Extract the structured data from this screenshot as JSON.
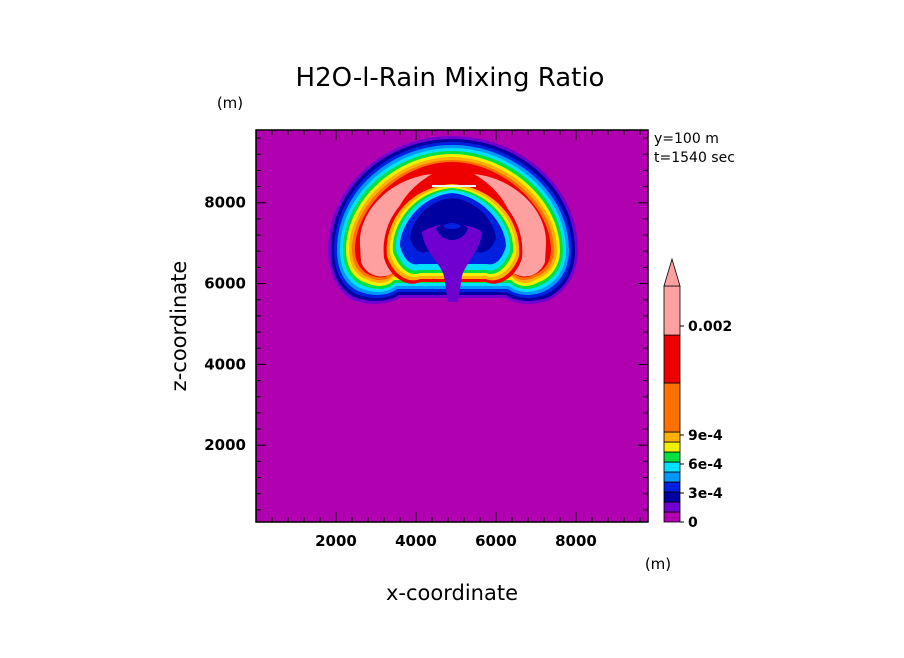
{
  "chart_data": {
    "type": "heatmap",
    "title": "H2O-l-Rain Mixing Ratio",
    "xlabel": "x-coordinate",
    "ylabel": "z-coordinate",
    "x_unit": "(m)",
    "y_unit": "(m)",
    "xlim": [
      0,
      9800
    ],
    "ylim": [
      100,
      9800
    ],
    "x_ticks": [
      "2000",
      "4000",
      "6000",
      "8000"
    ],
    "y_ticks": [
      "2000",
      "4000",
      "6000",
      "8000"
    ],
    "annotations": [
      "y=100 m",
      "t=1540 sec"
    ],
    "colorbar": {
      "labels": [
        {
          "text": "0.002",
          "level": 0.002
        },
        {
          "text": "9e-4",
          "level": 0.0009
        },
        {
          "text": "6e-4",
          "level": 0.0006
        },
        {
          "text": "3e-4",
          "level": 0.0003
        },
        {
          "text": "0",
          "level": 0
        }
      ],
      "colors": [
        "#b000b0",
        "#7000d0",
        "#0000a0",
        "#0020e0",
        "#0098ff",
        "#00e0ff",
        "#00e040",
        "#f0f000",
        "#ffb000",
        "#ff7000",
        "#ee0000",
        "#ffa0a0",
        "#ffa0a0"
      ],
      "background_value": 0
    }
  }
}
